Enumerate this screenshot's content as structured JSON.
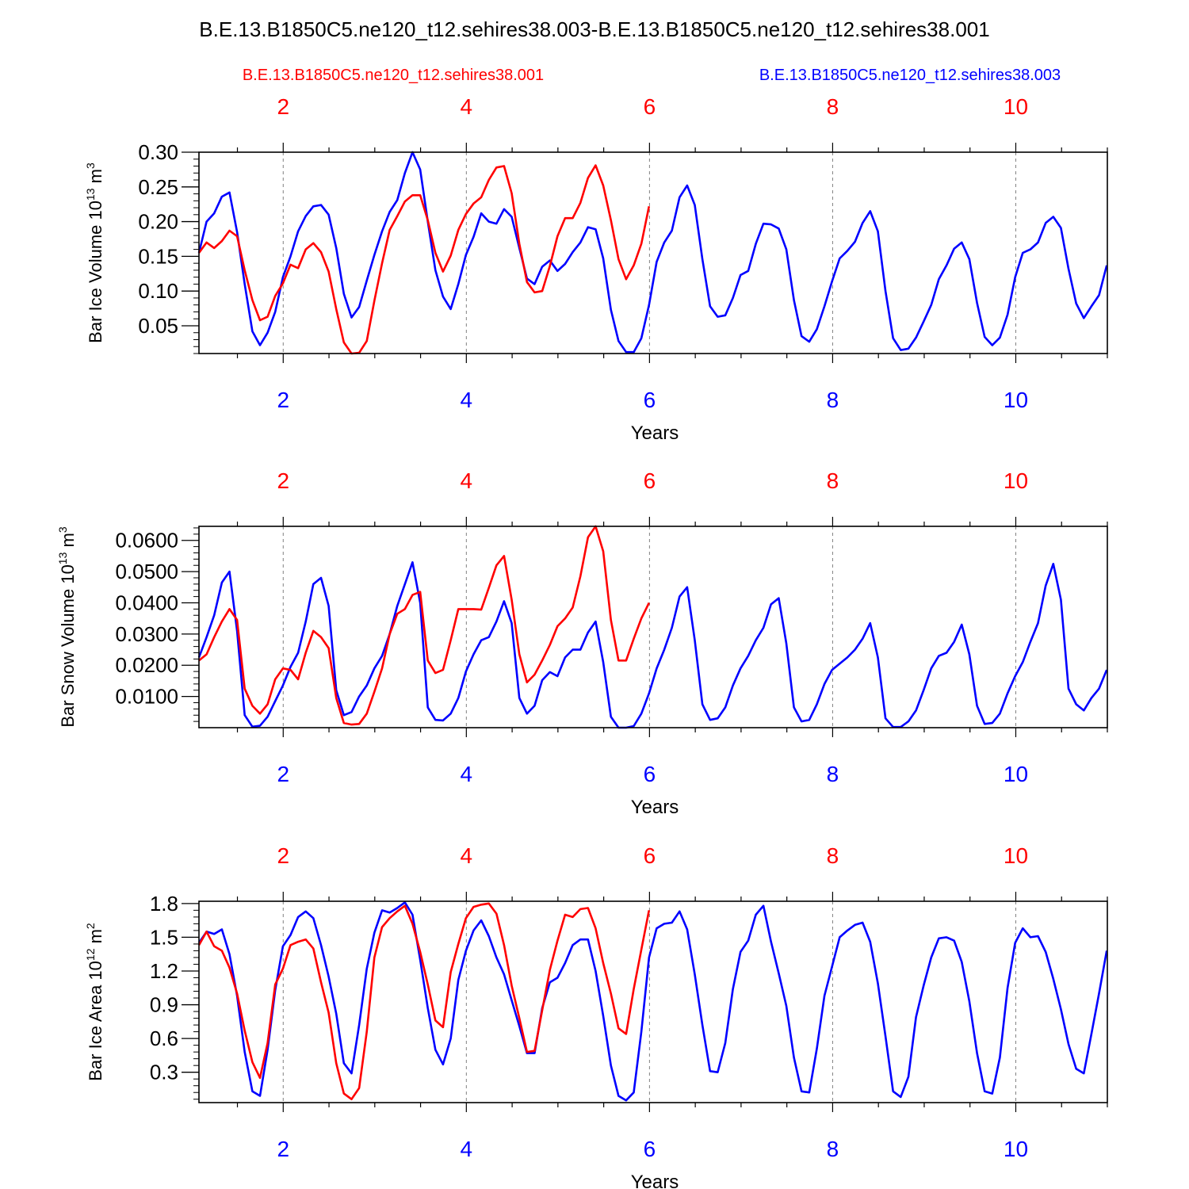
{
  "figure": {
    "title": "B.E.13.B1850C5.ne120_t12.sehires38.003-B.E.13.B1850C5.ne120_t12.sehires38.001",
    "legend_left": "B.E.13.B1850C5.ne120_t12.sehires38.001",
    "legend_right": "B.E.13.B1850C5.ne120_t12.sehires38.003",
    "colors": {
      "run001": "#ff0000",
      "run003": "#0000ff",
      "axis": "#000000",
      "grid": "#808080"
    }
  },
  "chart_data": [
    {
      "type": "line",
      "ylabel_main": "Bar Ice Volume 10",
      "ylabel_exp": "13",
      "ylabel_unit": " m",
      "ylabel_unit_exp": "3",
      "xlabel": "Years",
      "xlim": [
        1.08,
        11.0
      ],
      "ylim": [
        0.01,
        0.3
      ],
      "yticks": [
        0.05,
        0.1,
        0.15,
        0.2,
        0.25,
        0.3
      ],
      "yticklabels": [
        "0.05",
        "0.10",
        "0.15",
        "0.20",
        "0.25",
        "0.30"
      ],
      "xticks": [
        2,
        4,
        6,
        8,
        10
      ],
      "xticklabels": [
        "2",
        "4",
        "6",
        "8",
        "10"
      ],
      "grid_x": true,
      "series": [
        {
          "key": "run003",
          "x_start": 1.08,
          "x_step": 0.0833,
          "values": [
            0.155,
            0.2,
            0.212,
            0.236,
            0.242,
            0.185,
            0.11,
            0.042,
            0.022,
            0.04,
            0.07,
            0.12,
            0.15,
            0.186,
            0.208,
            0.222,
            0.224,
            0.21,
            0.162,
            0.096,
            0.062,
            0.077,
            0.115,
            0.152,
            0.186,
            0.214,
            0.231,
            0.27,
            0.3,
            0.275,
            0.2,
            0.13,
            0.092,
            0.074,
            0.11,
            0.152,
            0.178,
            0.212,
            0.2,
            0.197,
            0.218,
            0.207,
            0.162,
            0.118,
            0.11,
            0.135,
            0.144,
            0.129,
            0.139,
            0.156,
            0.17,
            0.192,
            0.189,
            0.147,
            0.073,
            0.028,
            0.012,
            0.012,
            0.032,
            0.08,
            0.142,
            0.17,
            0.187,
            0.235,
            0.252,
            0.224,
            0.146,
            0.078,
            0.063,
            0.065,
            0.09,
            0.123,
            0.129,
            0.168,
            0.197,
            0.196,
            0.19,
            0.16,
            0.087,
            0.035,
            0.027,
            0.045,
            0.078,
            0.114,
            0.147,
            0.158,
            0.171,
            0.198,
            0.215,
            0.186,
            0.1,
            0.032,
            0.015,
            0.017,
            0.033,
            0.056,
            0.08,
            0.117,
            0.137,
            0.161,
            0.17,
            0.146,
            0.083,
            0.034,
            0.022,
            0.033,
            0.066,
            0.12,
            0.155,
            0.16,
            0.17,
            0.198,
            0.207,
            0.191,
            0.132,
            0.082,
            0.061,
            0.078,
            0.094,
            0.137
          ]
        },
        {
          "key": "run001",
          "x_start": 1.08,
          "x_step": 0.0833,
          "values": [
            0.155,
            0.17,
            0.162,
            0.172,
            0.187,
            0.179,
            0.13,
            0.087,
            0.058,
            0.063,
            0.093,
            0.111,
            0.138,
            0.133,
            0.16,
            0.169,
            0.156,
            0.128,
            0.074,
            0.026,
            0.01,
            0.011,
            0.028,
            0.086,
            0.14,
            0.188,
            0.208,
            0.229,
            0.238,
            0.238,
            0.202,
            0.155,
            0.128,
            0.151,
            0.188,
            0.211,
            0.226,
            0.235,
            0.26,
            0.278,
            0.28,
            0.241,
            0.168,
            0.113,
            0.098,
            0.1,
            0.136,
            0.179,
            0.205,
            0.205,
            0.227,
            0.263,
            0.281,
            0.252,
            0.202,
            0.146,
            0.117,
            0.137,
            0.168,
            0.222
          ]
        }
      ]
    },
    {
      "type": "line",
      "ylabel_main": "Bar Snow Volume 10",
      "ylabel_exp": "13",
      "ylabel_unit": " m",
      "ylabel_unit_exp": "3",
      "xlabel": "Years",
      "xlim": [
        1.08,
        11.0
      ],
      "ylim": [
        0.0,
        0.0645
      ],
      "yticks": [
        0.01,
        0.02,
        0.03,
        0.04,
        0.05,
        0.06
      ],
      "yticklabels": [
        "0.0100",
        "0.0200",
        "0.0300",
        "0.0400",
        "0.0500",
        "0.0600"
      ],
      "xticks": [
        2,
        4,
        6,
        8,
        10
      ],
      "xticklabels": [
        "2",
        "4",
        "6",
        "8",
        "10"
      ],
      "grid_x": true,
      "series": [
        {
          "key": "run003",
          "x_start": 1.08,
          "x_step": 0.0833,
          "values": [
            0.0225,
            0.029,
            0.036,
            0.0465,
            0.05,
            0.031,
            0.004,
            0.0003,
            0.0006,
            0.0035,
            0.0085,
            0.0135,
            0.0195,
            0.024,
            0.034,
            0.046,
            0.048,
            0.039,
            0.012,
            0.004,
            0.005,
            0.01,
            0.0135,
            0.019,
            0.023,
            0.03,
            0.039,
            0.046,
            0.053,
            0.04,
            0.0065,
            0.0025,
            0.0023,
            0.0045,
            0.0095,
            0.018,
            0.0235,
            0.028,
            0.029,
            0.034,
            0.0405,
            0.0335,
            0.0095,
            0.0045,
            0.007,
            0.0152,
            0.0178,
            0.0165,
            0.0225,
            0.025,
            0.025,
            0.0305,
            0.034,
            0.021,
            0.0035,
            0.0,
            0.0,
            0.0005,
            0.0045,
            0.011,
            0.019,
            0.025,
            0.032,
            0.042,
            0.045,
            0.028,
            0.0075,
            0.0025,
            0.003,
            0.0065,
            0.0135,
            0.019,
            0.023,
            0.028,
            0.032,
            0.0395,
            0.0415,
            0.027,
            0.0065,
            0.002,
            0.0025,
            0.0075,
            0.014,
            0.0185,
            0.0205,
            0.0225,
            0.025,
            0.0285,
            0.0335,
            0.0225,
            0.003,
            0.0002,
            0.0002,
            0.002,
            0.0055,
            0.012,
            0.019,
            0.023,
            0.024,
            0.0275,
            0.033,
            0.0235,
            0.007,
            0.0012,
            0.0015,
            0.0045,
            0.011,
            0.0165,
            0.021,
            0.0275,
            0.0335,
            0.0455,
            0.0525,
            0.041,
            0.0125,
            0.0075,
            0.0055,
            0.0095,
            0.0125,
            0.0185
          ]
        },
        {
          "key": "run001",
          "x_start": 1.08,
          "x_step": 0.0833,
          "values": [
            0.0215,
            0.0235,
            0.029,
            0.034,
            0.038,
            0.0345,
            0.0125,
            0.007,
            0.0045,
            0.0075,
            0.0155,
            0.019,
            0.0185,
            0.0155,
            0.024,
            0.031,
            0.029,
            0.0255,
            0.0095,
            0.0015,
            0.001,
            0.0012,
            0.0045,
            0.0115,
            0.019,
            0.03,
            0.0365,
            0.038,
            0.0425,
            0.0435,
            0.0215,
            0.0175,
            0.0185,
            0.028,
            0.038,
            0.038,
            0.038,
            0.0378,
            0.0448,
            0.052,
            0.055,
            0.041,
            0.0235,
            0.0145,
            0.017,
            0.0215,
            0.0265,
            0.0325,
            0.035,
            0.0385,
            0.0485,
            0.061,
            0.0645,
            0.0565,
            0.0345,
            0.0215,
            0.0215,
            0.0285,
            0.035,
            0.04
          ]
        }
      ]
    },
    {
      "type": "line",
      "ylabel_main": "Bar Ice Area 10",
      "ylabel_exp": "12",
      "ylabel_unit": " m",
      "ylabel_unit_exp": "2",
      "xlabel": "Years",
      "xlim": [
        1.08,
        11.0
      ],
      "ylim": [
        0.03,
        1.82
      ],
      "yticks": [
        0.3,
        0.6,
        0.9,
        1.2,
        1.5,
        1.8
      ],
      "yticklabels": [
        "0.3",
        "0.6",
        "0.9",
        "1.2",
        "1.5",
        "1.8"
      ],
      "xticks": [
        2,
        4,
        6,
        8,
        10
      ],
      "xticklabels": [
        "2",
        "4",
        "6",
        "8",
        "10"
      ],
      "grid_x": true,
      "series": [
        {
          "key": "run003",
          "x_start": 1.08,
          "x_step": 0.0833,
          "values": [
            1.45,
            1.55,
            1.53,
            1.57,
            1.35,
            0.98,
            0.48,
            0.13,
            0.09,
            0.5,
            1.03,
            1.42,
            1.52,
            1.68,
            1.73,
            1.67,
            1.43,
            1.15,
            0.82,
            0.38,
            0.29,
            0.72,
            1.22,
            1.54,
            1.74,
            1.72,
            1.76,
            1.81,
            1.7,
            1.3,
            0.87,
            0.5,
            0.37,
            0.6,
            1.12,
            1.38,
            1.56,
            1.65,
            1.51,
            1.32,
            1.17,
            0.94,
            0.71,
            0.47,
            0.47,
            0.87,
            1.1,
            1.14,
            1.27,
            1.43,
            1.48,
            1.48,
            1.2,
            0.8,
            0.36,
            0.09,
            0.05,
            0.12,
            0.66,
            1.32,
            1.58,
            1.62,
            1.63,
            1.73,
            1.57,
            1.17,
            0.72,
            0.31,
            0.3,
            0.56,
            1.04,
            1.37,
            1.47,
            1.7,
            1.78,
            1.46,
            1.18,
            0.89,
            0.43,
            0.13,
            0.12,
            0.51,
            0.98,
            1.24,
            1.5,
            1.56,
            1.61,
            1.63,
            1.46,
            1.09,
            0.62,
            0.13,
            0.08,
            0.26,
            0.79,
            1.07,
            1.32,
            1.49,
            1.5,
            1.47,
            1.28,
            0.93,
            0.47,
            0.13,
            0.11,
            0.43,
            1.05,
            1.45,
            1.58,
            1.5,
            1.51,
            1.37,
            1.13,
            0.86,
            0.55,
            0.33,
            0.29,
            0.64,
            1.0,
            1.38
          ]
        },
        {
          "key": "run001",
          "x_start": 1.08,
          "x_step": 0.0833,
          "values": [
            1.43,
            1.55,
            1.42,
            1.38,
            1.23,
            1.0,
            0.67,
            0.39,
            0.25,
            0.56,
            1.08,
            1.22,
            1.43,
            1.46,
            1.48,
            1.4,
            1.1,
            0.83,
            0.38,
            0.11,
            0.06,
            0.16,
            0.66,
            1.32,
            1.59,
            1.67,
            1.73,
            1.78,
            1.62,
            1.37,
            1.08,
            0.76,
            0.7,
            1.19,
            1.44,
            1.67,
            1.77,
            1.79,
            1.8,
            1.71,
            1.43,
            1.07,
            0.78,
            0.48,
            0.49,
            0.85,
            1.21,
            1.47,
            1.7,
            1.68,
            1.75,
            1.76,
            1.58,
            1.27,
            1.0,
            0.69,
            0.64,
            1.04,
            1.39,
            1.74
          ]
        }
      ]
    }
  ]
}
